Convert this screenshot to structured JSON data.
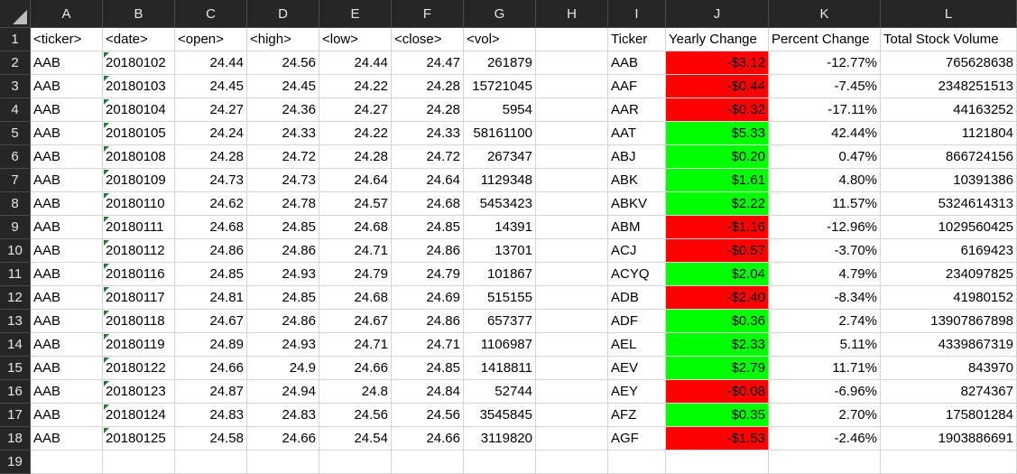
{
  "columns": [
    "A",
    "B",
    "C",
    "D",
    "E",
    "F",
    "G",
    "H",
    "I",
    "J",
    "K",
    "L"
  ],
  "header_row": [
    "<ticker>",
    "<date>",
    "<open>",
    "<high>",
    "<low>",
    "<close>",
    "<vol>",
    "",
    "Ticker",
    "Yearly Change",
    "Percent Change",
    "Total Stock Volume"
  ],
  "rows": [
    {
      "num": "2",
      "ticker": "AAB",
      "date": "20180102",
      "open": "24.44",
      "high": "24.56",
      "low": "24.44",
      "close": "24.47",
      "vol": "261879",
      "t2": "AAB",
      "change": "-$3.12",
      "status": "neg",
      "pct": "-12.77%",
      "total": "765628638"
    },
    {
      "num": "3",
      "ticker": "AAB",
      "date": "20180103",
      "open": "24.45",
      "high": "24.45",
      "low": "24.22",
      "close": "24.28",
      "vol": "15721045",
      "t2": "AAF",
      "change": "-$0.44",
      "status": "neg",
      "pct": "-7.45%",
      "total": "2348251513"
    },
    {
      "num": "4",
      "ticker": "AAB",
      "date": "20180104",
      "open": "24.27",
      "high": "24.36",
      "low": "24.27",
      "close": "24.28",
      "vol": "5954",
      "t2": "AAR",
      "change": "-$0.32",
      "status": "neg",
      "pct": "-17.11%",
      "total": "44163252"
    },
    {
      "num": "5",
      "ticker": "AAB",
      "date": "20180105",
      "open": "24.24",
      "high": "24.33",
      "low": "24.22",
      "close": "24.33",
      "vol": "58161100",
      "t2": "AAT",
      "change": "$5.33",
      "status": "pos",
      "pct": "42.44%",
      "total": "1121804"
    },
    {
      "num": "6",
      "ticker": "AAB",
      "date": "20180108",
      "open": "24.28",
      "high": "24.72",
      "low": "24.28",
      "close": "24.72",
      "vol": "267347",
      "t2": "ABJ",
      "change": "$0.20",
      "status": "pos",
      "pct": "0.47%",
      "total": "866724156"
    },
    {
      "num": "7",
      "ticker": "AAB",
      "date": "20180109",
      "open": "24.73",
      "high": "24.73",
      "low": "24.64",
      "close": "24.64",
      "vol": "1129348",
      "t2": "ABK",
      "change": "$1.61",
      "status": "pos",
      "pct": "4.80%",
      "total": "10391386"
    },
    {
      "num": "8",
      "ticker": "AAB",
      "date": "20180110",
      "open": "24.62",
      "high": "24.78",
      "low": "24.57",
      "close": "24.68",
      "vol": "5453423",
      "t2": "ABKV",
      "change": "$2.22",
      "status": "pos",
      "pct": "11.57%",
      "total": "5324614313"
    },
    {
      "num": "9",
      "ticker": "AAB",
      "date": "20180111",
      "open": "24.68",
      "high": "24.85",
      "low": "24.68",
      "close": "24.85",
      "vol": "14391",
      "t2": "ABM",
      "change": "-$1.16",
      "status": "neg",
      "pct": "-12.96%",
      "total": "1029560425"
    },
    {
      "num": "10",
      "ticker": "AAB",
      "date": "20180112",
      "open": "24.86",
      "high": "24.86",
      "low": "24.71",
      "close": "24.86",
      "vol": "13701",
      "t2": "ACJ",
      "change": "-$0.57",
      "status": "neg",
      "pct": "-3.70%",
      "total": "6169423"
    },
    {
      "num": "11",
      "ticker": "AAB",
      "date": "20180116",
      "open": "24.85",
      "high": "24.93",
      "low": "24.79",
      "close": "24.79",
      "vol": "101867",
      "t2": "ACYQ",
      "change": "$2.04",
      "status": "pos",
      "pct": "4.79%",
      "total": "234097825"
    },
    {
      "num": "12",
      "ticker": "AAB",
      "date": "20180117",
      "open": "24.81",
      "high": "24.85",
      "low": "24.68",
      "close": "24.69",
      "vol": "515155",
      "t2": "ADB",
      "change": "-$2.40",
      "status": "neg",
      "pct": "-8.34%",
      "total": "41980152"
    },
    {
      "num": "13",
      "ticker": "AAB",
      "date": "20180118",
      "open": "24.67",
      "high": "24.86",
      "low": "24.67",
      "close": "24.86",
      "vol": "657377",
      "t2": "ADF",
      "change": "$0.36",
      "status": "pos",
      "pct": "2.74%",
      "total": "13907867898"
    },
    {
      "num": "14",
      "ticker": "AAB",
      "date": "20180119",
      "open": "24.89",
      "high": "24.93",
      "low": "24.71",
      "close": "24.71",
      "vol": "1106987",
      "t2": "AEL",
      "change": "$2.33",
      "status": "pos",
      "pct": "5.11%",
      "total": "4339867319"
    },
    {
      "num": "15",
      "ticker": "AAB",
      "date": "20180122",
      "open": "24.66",
      "high": "24.9",
      "low": "24.66",
      "close": "24.85",
      "vol": "1418811",
      "t2": "AEV",
      "change": "$2.79",
      "status": "pos",
      "pct": "11.71%",
      "total": "843970"
    },
    {
      "num": "16",
      "ticker": "AAB",
      "date": "20180123",
      "open": "24.87",
      "high": "24.94",
      "low": "24.8",
      "close": "24.84",
      "vol": "52744",
      "t2": "AEY",
      "change": "-$0.08",
      "status": "neg",
      "pct": "-6.96%",
      "total": "8274367"
    },
    {
      "num": "17",
      "ticker": "AAB",
      "date": "20180124",
      "open": "24.83",
      "high": "24.83",
      "low": "24.56",
      "close": "24.56",
      "vol": "3545845",
      "t2": "AFZ",
      "change": "$0.35",
      "status": "pos",
      "pct": "2.70%",
      "total": "175801284"
    },
    {
      "num": "18",
      "ticker": "AAB",
      "date": "20180125",
      "open": "24.58",
      "high": "24.66",
      "low": "24.54",
      "close": "24.66",
      "vol": "3119820",
      "t2": "AGF",
      "change": "-$1.53",
      "status": "neg",
      "pct": "-2.46%",
      "total": "1903886691"
    }
  ],
  "row1_num": "1",
  "row19_num": "19",
  "colors": {
    "negative": "#ff0000",
    "positive": "#00ff00",
    "header_bg": "#262626"
  }
}
